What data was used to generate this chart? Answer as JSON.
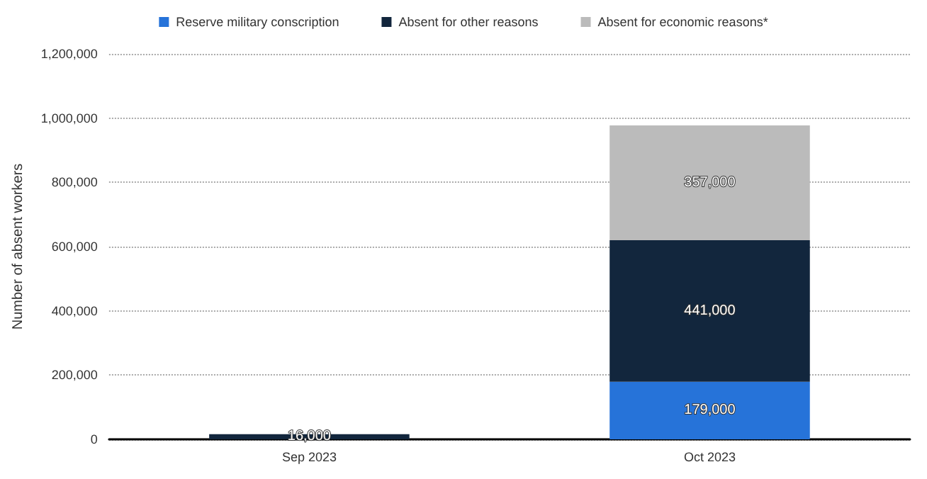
{
  "chart_data": {
    "type": "bar",
    "stacked": true,
    "ylabel": "Number of absent workers",
    "categories": [
      "Sep 2023",
      "Oct 2023"
    ],
    "series": [
      {
        "name": "Reserve military conscription",
        "color": "#2673d9",
        "values": [
          null,
          179000
        ],
        "value_labels": [
          null,
          "179,000"
        ]
      },
      {
        "name": "Absent for other reasons",
        "color": "#12263d",
        "values": [
          16000,
          441000
        ],
        "value_labels": [
          "16,000",
          "441,000"
        ]
      },
      {
        "name": "Absent for economic reasons*",
        "color": "#bbbbbb",
        "values": [
          null,
          357000
        ],
        "value_labels": [
          null,
          "357,000"
        ]
      }
    ],
    "ylim": [
      0,
      1200000
    ],
    "yticks": [
      {
        "value": 0,
        "label": "0"
      },
      {
        "value": 200000,
        "label": "200,000"
      },
      {
        "value": 400000,
        "label": "400,000"
      },
      {
        "value": 600000,
        "label": "600,000"
      },
      {
        "value": 800000,
        "label": "800,000"
      },
      {
        "value": 1000000,
        "label": "1,000,000"
      },
      {
        "value": 1200000,
        "label": "1,200,000"
      }
    ],
    "grid": "y",
    "legend": "top"
  }
}
